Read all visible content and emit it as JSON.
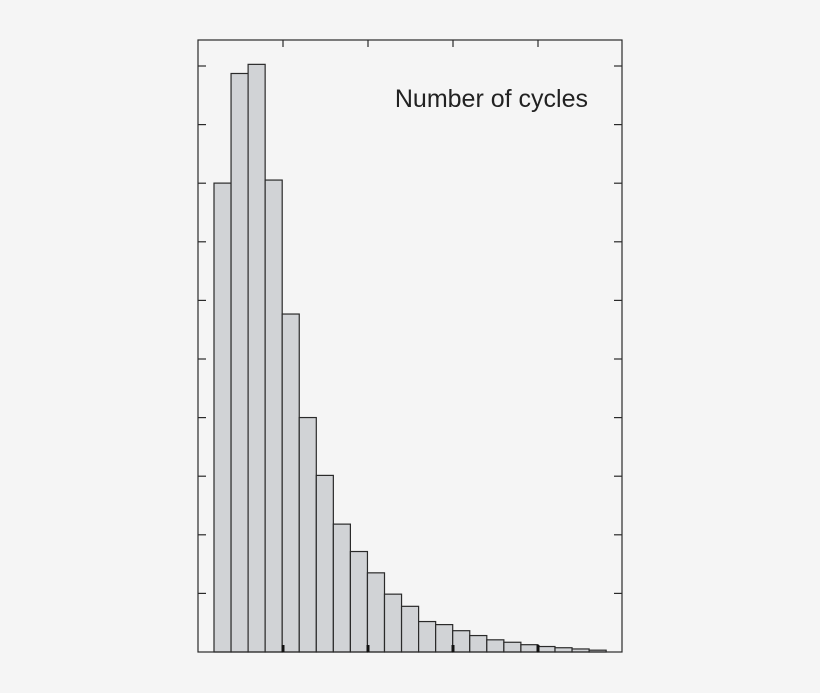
{
  "chart_data": {
    "type": "bar",
    "title": "Number of cycles",
    "xlabel": "",
    "ylabel": "",
    "ylim": [
      0,
      10
    ],
    "grid": false,
    "legend": "none",
    "bar_fill": "#d1d3d6",
    "bar_stroke": "#2a2a2a",
    "x_major_ticks": 5,
    "y_major_ticks": 10,
    "values": [
      7.7,
      9.5,
      9.65,
      7.75,
      5.55,
      3.85,
      2.9,
      2.1,
      1.65,
      1.3,
      0.95,
      0.75,
      0.5,
      0.45,
      0.35,
      0.27,
      0.2,
      0.16,
      0.12,
      0.09,
      0.07,
      0.05,
      0.03
    ]
  }
}
